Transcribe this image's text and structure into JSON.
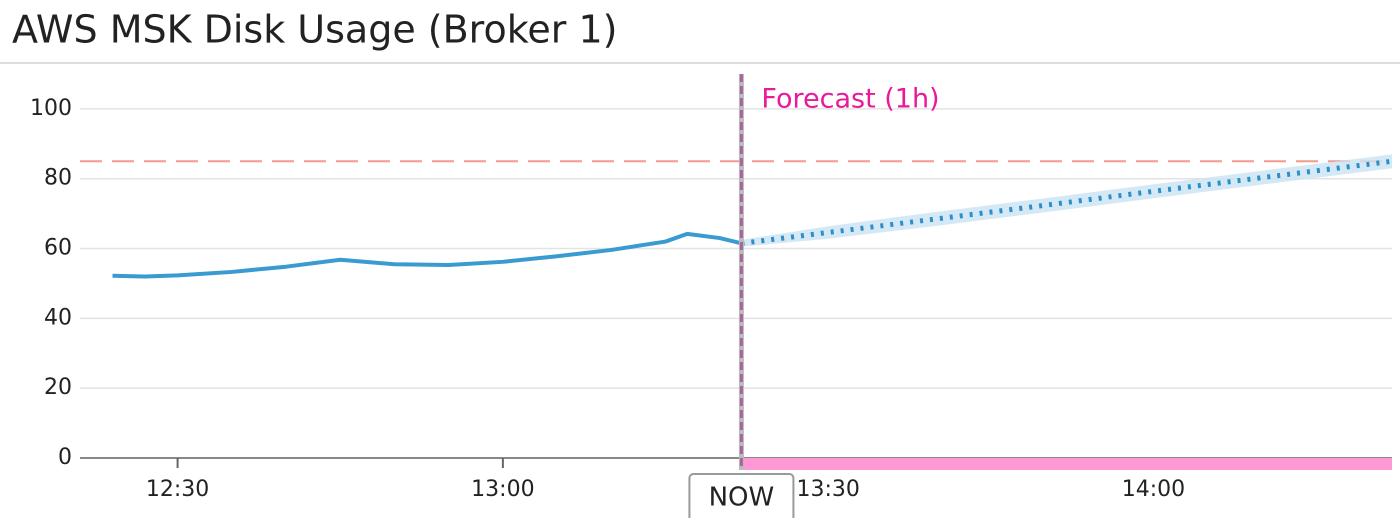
{
  "chart_data": {
    "type": "line",
    "title": "AWS MSK Disk Usage (Broker 1)",
    "x": [
      "12:24",
      "12:27",
      "12:30",
      "12:35",
      "12:40",
      "12:45",
      "12:50",
      "12:55",
      "13:00",
      "13:05",
      "13:10",
      "13:15",
      "13:17",
      "13:20",
      "13:22",
      "13:30",
      "13:40",
      "13:50",
      "14:00",
      "14:10",
      "14:20",
      "14:22"
    ],
    "series": [
      {
        "name": "actual",
        "color": "#3a9bd0",
        "values": [
          52.2,
          52,
          52.3,
          53.3,
          54.8,
          56.8,
          55.5,
          55.3,
          56.2,
          57.8,
          59.6,
          62,
          64.2,
          63,
          61.5,
          null,
          null,
          null,
          null,
          null,
          null,
          null
        ]
      },
      {
        "name": "forecast",
        "color": "#2d8fc9",
        "values": [
          null,
          null,
          null,
          null,
          null,
          null,
          null,
          null,
          null,
          null,
          null,
          null,
          null,
          null,
          61.5,
          64.6,
          68.5,
          72.4,
          76.4,
          80.3,
          84.2,
          85
        ]
      },
      {
        "name": "upper",
        "color": "#c9e3f3",
        "values": [
          null,
          null,
          null,
          null,
          null,
          null,
          null,
          null,
          null,
          null,
          null,
          null,
          null,
          null,
          62.5,
          66.4,
          70.5,
          74.4,
          78.4,
          82.3,
          86.2,
          87
        ]
      },
      {
        "name": "lower",
        "color": "#c9e3f3",
        "values": [
          null,
          null,
          null,
          null,
          null,
          null,
          null,
          null,
          null,
          null,
          null,
          null,
          null,
          null,
          60.5,
          62.8,
          66.5,
          70.4,
          74.4,
          78.3,
          82.2,
          83
        ]
      }
    ],
    "xlim": [
      "12:21",
      "14:22"
    ],
    "xticks": [
      "12:30",
      "13:00",
      "13:30",
      "14:00"
    ],
    "ylim": [
      0,
      110
    ],
    "yticks": [
      0,
      20,
      40,
      60,
      80,
      100
    ],
    "grid": true,
    "threshold": 85,
    "threshold_color": "#f29a8e",
    "now": "13:22",
    "now_label": "NOW",
    "now_color": "#a8659b",
    "forecast_label": "Forecast (1h)",
    "forecast_color": "#e8199a",
    "forecast_bar_color": "#ff99d6"
  }
}
